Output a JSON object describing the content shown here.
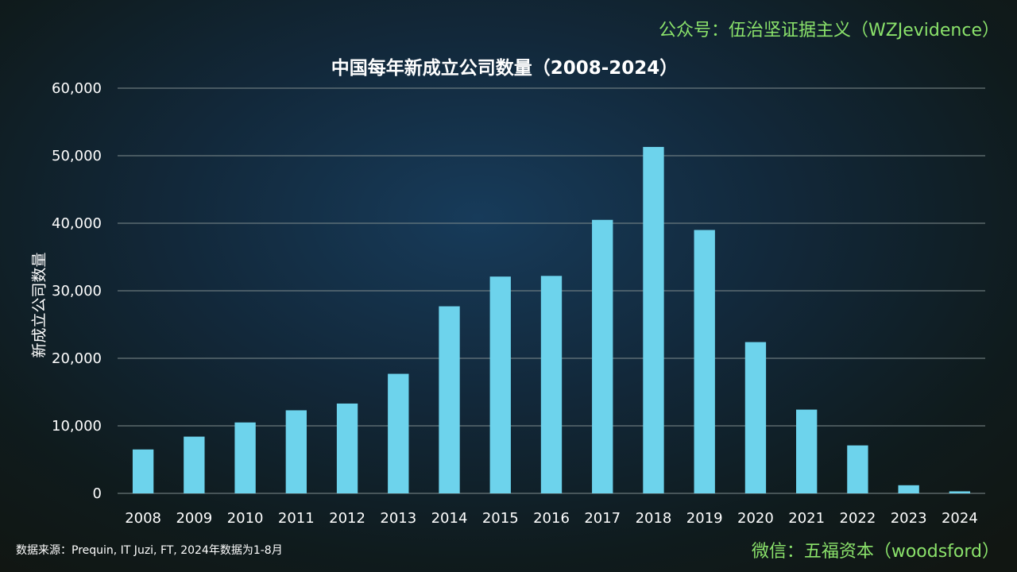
{
  "watermark_top": "公众号：伍治坚证据主义（WZJevidence）",
  "watermark_bottom": "微信：五福资本（woodsford）",
  "source_note": "数据来源：Prequin, IT Juzi, FT, 2024年数据为1-8月",
  "colors": {
    "bar": "#6dd3ec",
    "gridline": "#7f8c8d",
    "watermark": "#8be36b"
  },
  "chart_data": {
    "type": "bar",
    "title": "中国每年新成立公司数量（2008-2024）",
    "xlabel": "",
    "ylabel": "新成立公司数量",
    "categories": [
      "2008",
      "2009",
      "2010",
      "2011",
      "2012",
      "2013",
      "2014",
      "2015",
      "2016",
      "2017",
      "2018",
      "2019",
      "2020",
      "2021",
      "2022",
      "2023",
      "2024"
    ],
    "values": [
      6500,
      8400,
      10500,
      12300,
      13300,
      17700,
      27700,
      32100,
      32200,
      40500,
      51300,
      39000,
      22400,
      12400,
      7100,
      1200,
      300
    ],
    "ylim": [
      0,
      60000
    ],
    "yticks": [
      0,
      10000,
      20000,
      30000,
      40000,
      50000,
      60000
    ],
    "ytick_labels": [
      "0",
      "10,000",
      "20,000",
      "30,000",
      "40,000",
      "50,000",
      "60,000"
    ],
    "grid": true,
    "legend": "none"
  }
}
